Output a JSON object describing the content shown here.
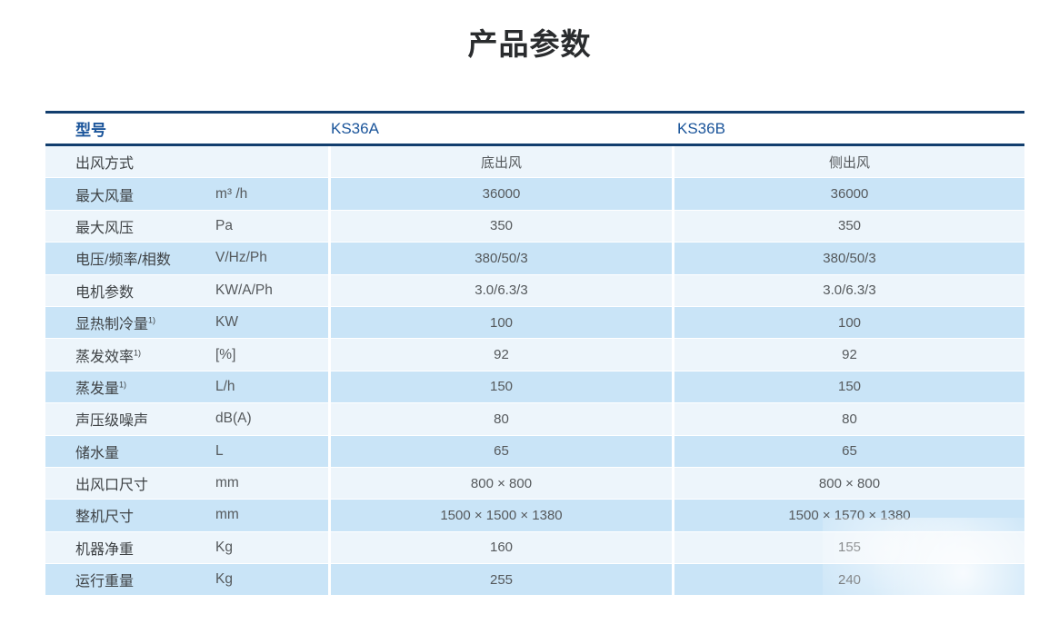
{
  "page_title": "产品参数",
  "table": {
    "header": {
      "model_label": "型号",
      "columns": [
        "KS36A",
        "KS36B"
      ]
    },
    "rows": [
      {
        "label": "出风方式",
        "sup": "",
        "unit": "",
        "ks36a": "底出风",
        "ks36b": "侧出风"
      },
      {
        "label": "最大风量",
        "sup": "",
        "unit": "m³ /h",
        "ks36a": "36000",
        "ks36b": "36000"
      },
      {
        "label": "最大风压",
        "sup": "",
        "unit": "Pa",
        "ks36a": "350",
        "ks36b": "350"
      },
      {
        "label": "电压/频率/相数",
        "sup": "",
        "unit": "V/Hz/Ph",
        "ks36a": "380/50/3",
        "ks36b": "380/50/3"
      },
      {
        "label": "电机参数",
        "sup": "",
        "unit": "KW/A/Ph",
        "ks36a": "3.0/6.3/3",
        "ks36b": "3.0/6.3/3"
      },
      {
        "label": "显热制冷量",
        "sup": "1)",
        "unit": "KW",
        "ks36a": "100",
        "ks36b": "100"
      },
      {
        "label": "蒸发效率",
        "sup": "1)",
        "unit": "[%]",
        "ks36a": "92",
        "ks36b": "92"
      },
      {
        "label": "蒸发量",
        "sup": "1)",
        "unit": "L/h",
        "ks36a": "150",
        "ks36b": "150"
      },
      {
        "label": "声压级噪声",
        "sup": "",
        "unit": "dB(A)",
        "ks36a": "80",
        "ks36b": "80"
      },
      {
        "label": "储水量",
        "sup": "",
        "unit": "L",
        "ks36a": "65",
        "ks36b": "65"
      },
      {
        "label": "出风口尺寸",
        "sup": "",
        "unit": "mm",
        "ks36a": "800 × 800",
        "ks36b": "800 × 800"
      },
      {
        "label": "整机尺寸",
        "sup": "",
        "unit": "mm",
        "ks36a": "1500 × 1500 × 1380",
        "ks36b": "1500 × 1570 × 1380"
      },
      {
        "label": "机器净重",
        "sup": "",
        "unit": "Kg",
        "ks36a": "160",
        "ks36b": "155"
      },
      {
        "label": "运行重量",
        "sup": "",
        "unit": "Kg",
        "ks36a": "255",
        "ks36b": "240"
      }
    ]
  },
  "colors": {
    "title_text": "#2a2c2e",
    "header_border": "#123e6e",
    "header_text": "#1a549a",
    "row_light": "#edf5fb",
    "row_dark": "#c9e4f7",
    "label_text": "#3e4245",
    "value_text": "#55595c"
  }
}
